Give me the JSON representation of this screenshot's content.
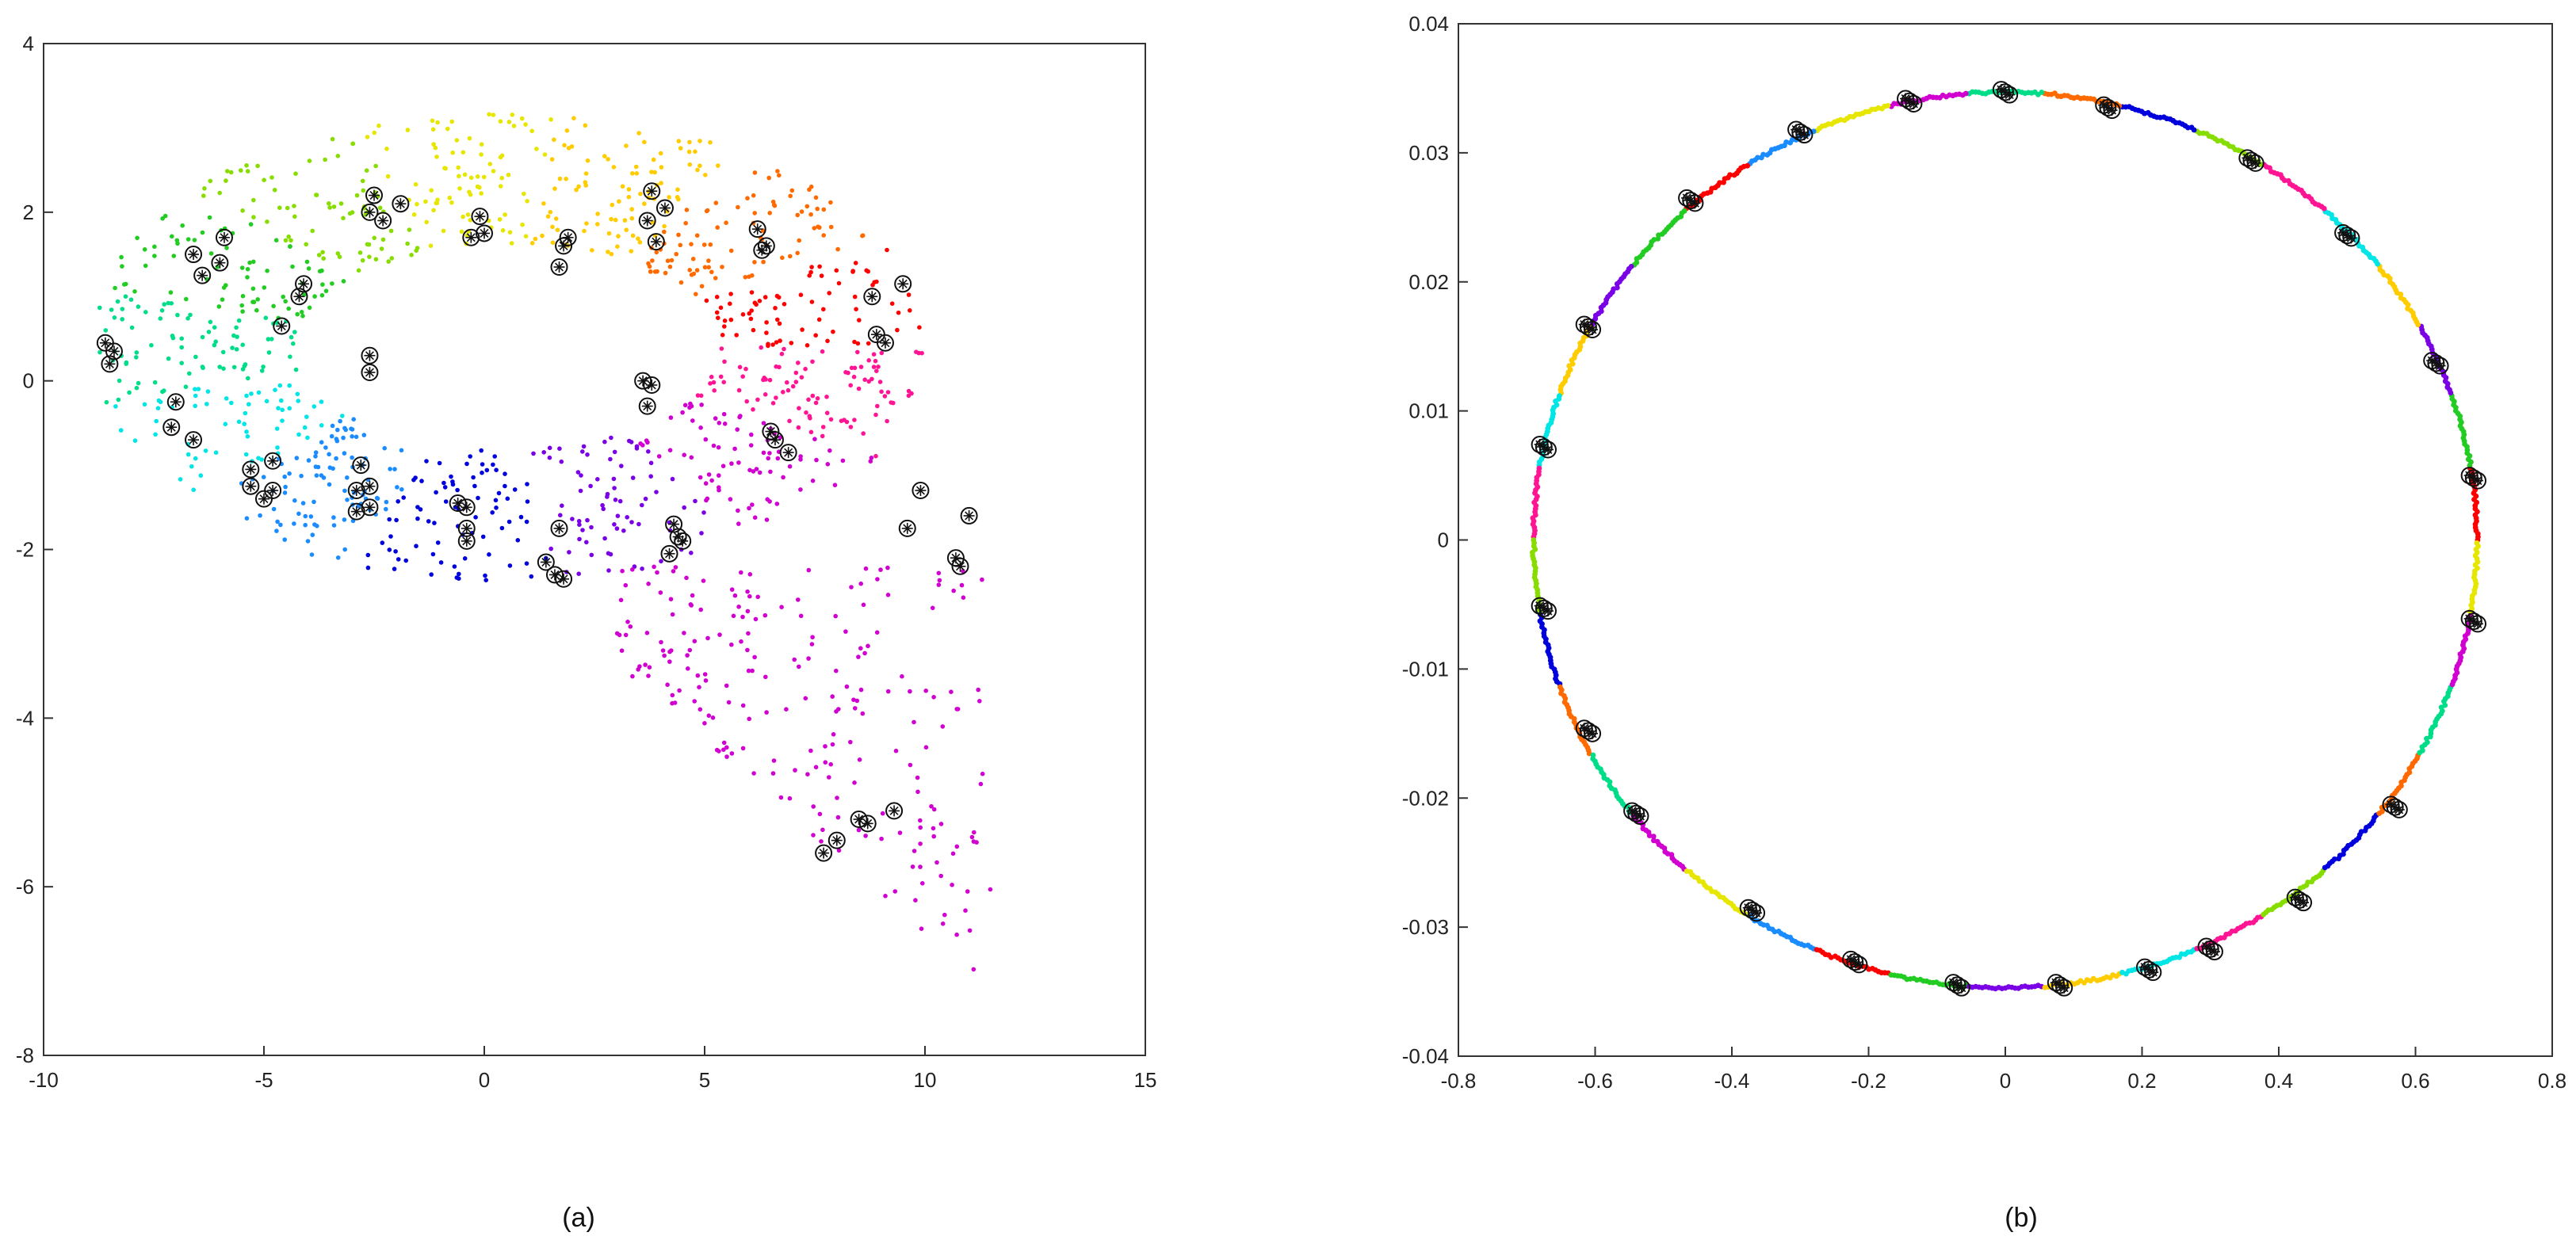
{
  "chart_data": [
    {
      "type": "scatter",
      "caption": "(a)",
      "title": "",
      "xlabel": "",
      "ylabel": "",
      "xlim": [
        -10,
        15
      ],
      "ylim": [
        -8,
        4
      ],
      "xticks": [
        "-10",
        "-5",
        "0",
        "5",
        "10",
        "15"
      ],
      "yticks": [
        "-8",
        "-6",
        "-4",
        "-2",
        "0",
        "2",
        "4"
      ],
      "grid": false,
      "legend": "none",
      "palette": [
        "#ff0000",
        "#ff6a00",
        "#ffcc00",
        "#e6e600",
        "#88dd00",
        "#22cc22",
        "#00dd88",
        "#00e5e5",
        "#1a8cff",
        "#0000dd",
        "#7a00e6",
        "#d100d1",
        "#ff1493"
      ],
      "highlighted_points": [
        [
          -8.6,
          0.45
        ],
        [
          -8.4,
          0.35
        ],
        [
          -8.5,
          0.2
        ],
        [
          -6.6,
          1.5
        ],
        [
          -5.9,
          1.7
        ],
        [
          -6.0,
          1.4
        ],
        [
          -6.4,
          1.25
        ],
        [
          -4.6,
          0.65
        ],
        [
          -4.1,
          1.15
        ],
        [
          -4.2,
          1.0
        ],
        [
          -2.5,
          2.2
        ],
        [
          -2.3,
          1.9
        ],
        [
          -2.6,
          2.0
        ],
        [
          -1.9,
          2.1
        ],
        [
          -0.3,
          1.7
        ],
        [
          0.0,
          1.75
        ],
        [
          -0.1,
          1.95
        ],
        [
          1.8,
          1.6
        ],
        [
          1.7,
          1.35
        ],
        [
          1.9,
          1.7
        ],
        [
          3.7,
          1.9
        ],
        [
          3.8,
          2.25
        ],
        [
          4.1,
          2.05
        ],
        [
          3.9,
          1.65
        ],
        [
          6.2,
          1.8
        ],
        [
          6.4,
          1.6
        ],
        [
          6.3,
          1.55
        ],
        [
          8.8,
          1.0
        ],
        [
          9.5,
          1.15
        ],
        [
          8.9,
          0.55
        ],
        [
          9.1,
          0.45
        ],
        [
          -2.6,
          0.3
        ],
        [
          -2.6,
          0.1
        ],
        [
          3.6,
          0.0
        ],
        [
          3.8,
          -0.05
        ],
        [
          3.7,
          -0.3
        ],
        [
          6.5,
          -0.6
        ],
        [
          6.6,
          -0.7
        ],
        [
          6.9,
          -0.85
        ],
        [
          -6.6,
          -0.7
        ],
        [
          -7.0,
          -0.25
        ],
        [
          -7.1,
          -0.55
        ],
        [
          -5.3,
          -1.05
        ],
        [
          -5.3,
          -1.25
        ],
        [
          -4.8,
          -1.3
        ],
        [
          -4.8,
          -0.95
        ],
        [
          -5.0,
          -1.4
        ],
        [
          -2.8,
          -1.0
        ],
        [
          -2.6,
          -1.25
        ],
        [
          -2.9,
          -1.3
        ],
        [
          -2.6,
          -1.5
        ],
        [
          -2.9,
          -1.55
        ],
        [
          -0.6,
          -1.45
        ],
        [
          -0.4,
          -1.5
        ],
        [
          -0.4,
          -1.75
        ],
        [
          -0.4,
          -1.9
        ],
        [
          1.4,
          -2.15
        ],
        [
          1.6,
          -2.3
        ],
        [
          1.8,
          -2.35
        ],
        [
          1.7,
          -1.75
        ],
        [
          4.3,
          -1.7
        ],
        [
          4.4,
          -1.85
        ],
        [
          4.5,
          -1.9
        ],
        [
          4.2,
          -2.05
        ],
        [
          7.7,
          -5.6
        ],
        [
          8.0,
          -5.45
        ],
        [
          8.5,
          -5.2
        ],
        [
          8.7,
          -5.25
        ],
        [
          9.3,
          -5.1
        ],
        [
          9.9,
          -1.3
        ],
        [
          9.6,
          -1.75
        ],
        [
          10.7,
          -2.1
        ],
        [
          10.8,
          -2.2
        ],
        [
          11.0,
          -1.6
        ]
      ]
    },
    {
      "type": "scatter",
      "caption": "(b)",
      "title": "",
      "xlabel": "",
      "ylabel": "",
      "xlim": [
        -0.8,
        0.8
      ],
      "ylim": [
        -0.04,
        0.04
      ],
      "xticks": [
        "-0.8",
        "-0.6",
        "-0.4",
        "-0.2",
        "0",
        "0.2",
        "0.4",
        "0.6",
        "0.8"
      ],
      "yticks": [
        "-0.04",
        "-0.03",
        "-0.02",
        "-0.01",
        "0",
        "0.01",
        "0.02",
        "0.03",
        "0.04"
      ],
      "grid": false,
      "legend": "none",
      "ring": {
        "x_radius": 0.69,
        "y_radius": 0.0347
      },
      "palette": [
        "#ff0000",
        "#ff6a00",
        "#ffcc00",
        "#e6e600",
        "#88dd00",
        "#22cc22",
        "#00dd88",
        "#00e5e5",
        "#1a8cff",
        "#0000dd",
        "#7a00e6",
        "#d100d1",
        "#ff1493"
      ],
      "highlighted_points": [
        [
          0.0,
          0.0347
        ],
        [
          0.15,
          0.0335
        ],
        [
          0.36,
          0.0294
        ],
        [
          0.5,
          0.0236
        ],
        [
          0.63,
          0.0137
        ],
        [
          0.685,
          0.0048
        ],
        [
          0.685,
          -0.0063
        ],
        [
          0.57,
          -0.0207
        ],
        [
          0.43,
          -0.0279
        ],
        [
          0.3,
          -0.0317
        ],
        [
          0.21,
          -0.0333
        ],
        [
          0.08,
          -0.0345
        ],
        [
          -0.07,
          -0.0345
        ],
        [
          -0.22,
          -0.0327
        ],
        [
          -0.37,
          -0.0287
        ],
        [
          -0.54,
          -0.0212
        ],
        [
          -0.61,
          -0.0148
        ],
        [
          -0.675,
          -0.0053
        ],
        [
          -0.675,
          0.0072
        ],
        [
          -0.61,
          0.0165
        ],
        [
          -0.46,
          0.0263
        ],
        [
          -0.3,
          0.0316
        ],
        [
          -0.14,
          0.034
        ]
      ]
    }
  ]
}
